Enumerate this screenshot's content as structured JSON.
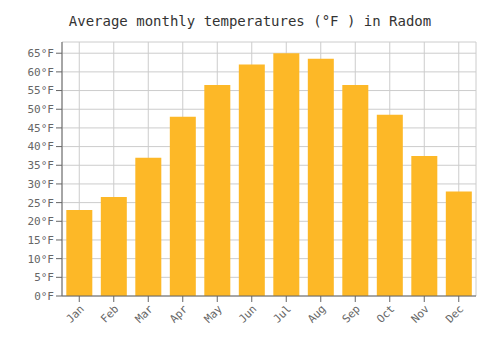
{
  "chart_data": {
    "type": "bar",
    "title": "Average monthly temperatures (°F ) in Radom",
    "categories": [
      "Jan",
      "Feb",
      "Mar",
      "Apr",
      "May",
      "Jun",
      "Jul",
      "Aug",
      "Sep",
      "Oct",
      "Nov",
      "Dec"
    ],
    "values": [
      23,
      26.5,
      37,
      48,
      56.5,
      62,
      65,
      63.5,
      56.5,
      48.5,
      37.5,
      28
    ],
    "color": "#FDB827",
    "ylim": [
      0,
      68
    ],
    "yticks": [
      {
        "value": 0,
        "label": "0°F"
      },
      {
        "value": 5,
        "label": "5°F"
      },
      {
        "value": 10,
        "label": "10°F"
      },
      {
        "value": 15,
        "label": "15°F"
      },
      {
        "value": 20,
        "label": "20°F"
      },
      {
        "value": 25,
        "label": "25°F"
      },
      {
        "value": 30,
        "label": "30°F"
      },
      {
        "value": 35,
        "label": "35°F"
      },
      {
        "value": 40,
        "label": "40°F"
      },
      {
        "value": 45,
        "label": "45°F"
      },
      {
        "value": 50,
        "label": "50°F"
      },
      {
        "value": 55,
        "label": "55°F"
      },
      {
        "value": 60,
        "label": "60°F"
      },
      {
        "value": 65,
        "label": "65°F"
      }
    ],
    "grid": true
  }
}
